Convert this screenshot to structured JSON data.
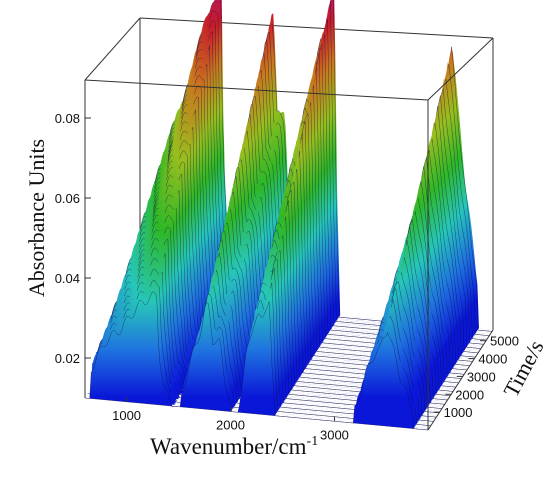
{
  "chart_data": {
    "type": "surface-3d",
    "title": "",
    "xlabel": "Wavenumber/cm",
    "xlabel_superscript": "-1",
    "ylabel": "Absorbance Units",
    "zlabel": "Time/s",
    "x_ticks": [
      "1000",
      "2000",
      "3000"
    ],
    "x_tick_values": [
      1000,
      2000,
      3000
    ],
    "y_ticks": [
      "0.02",
      "0.04",
      "0.06",
      "0.08"
    ],
    "y_tick_values": [
      0.02,
      0.04,
      0.06,
      0.08
    ],
    "z_ticks": [
      "1000",
      "2000",
      "3000",
      "4000",
      "5000"
    ],
    "z_tick_values": [
      1000,
      2000,
      3000,
      4000,
      5000
    ],
    "xlim": [
      600,
      3900
    ],
    "ylim": [
      0.01,
      0.09
    ],
    "zlim": [
      0,
      5600
    ],
    "grid": false,
    "colormap": [
      "#0a16d8",
      "#1e6fe0",
      "#28c8c8",
      "#1eb428",
      "#8cc81e",
      "#c8961e",
      "#c81e1e",
      "#b4146e"
    ],
    "series": [
      {
        "peak": 1000,
        "values": [
          [
            650,
            0.03
          ],
          [
            800,
            0.052
          ],
          [
            950,
            0.062
          ],
          [
            1050,
            0.073
          ],
          [
            1150,
            0.082
          ],
          [
            1250,
            0.087
          ],
          [
            1290,
            0.088
          ],
          [
            1310,
            0.05
          ],
          [
            1360,
            0.02
          ],
          [
            1450,
            0.012
          ]
        ]
      },
      {
        "peak": 1650,
        "values": [
          [
            1520,
            0.015
          ],
          [
            1600,
            0.04
          ],
          [
            1680,
            0.058
          ],
          [
            1720,
            0.068
          ],
          [
            1760,
            0.082
          ],
          [
            1790,
            0.084
          ],
          [
            1830,
            0.06
          ],
          [
            1900,
            0.058
          ],
          [
            1940,
            0.034
          ],
          [
            2000,
            0.014
          ]
        ]
      },
      {
        "peak": 2300,
        "values": [
          [
            2080,
            0.015
          ],
          [
            2150,
            0.05
          ],
          [
            2220,
            0.075
          ],
          [
            2260,
            0.08
          ],
          [
            2300,
            0.076
          ],
          [
            2340,
            0.088
          ],
          [
            2380,
            0.094
          ],
          [
            2390,
            0.05
          ],
          [
            2420,
            0.02
          ]
        ]
      },
      {
        "peak": 3300,
        "values": [
          [
            3180,
            0.016
          ],
          [
            3260,
            0.035
          ],
          [
            3320,
            0.05
          ],
          [
            3380,
            0.06
          ],
          [
            3440,
            0.064
          ],
          [
            3470,
            0.073
          ],
          [
            3510,
            0.08
          ],
          [
            3560,
            0.066
          ],
          [
            3640,
            0.045
          ],
          [
            3760,
            0.02
          ]
        ]
      }
    ]
  }
}
